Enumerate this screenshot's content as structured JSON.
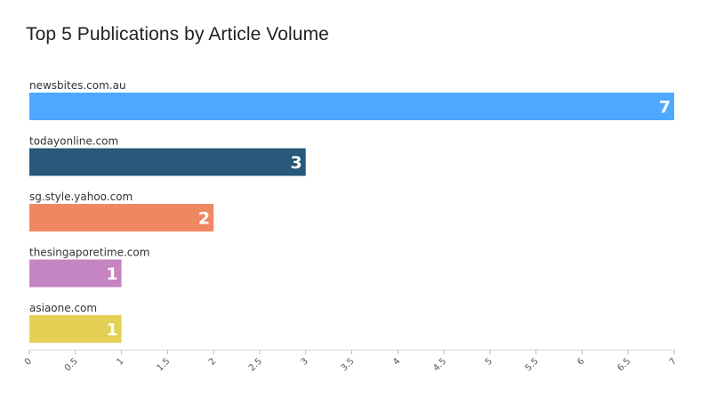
{
  "chart_data": {
    "type": "bar",
    "orientation": "horizontal",
    "title": "Top 5 Publications by Article Volume",
    "categories": [
      "newsbites.com.au",
      "todayonline.com",
      "sg.style.yahoo.com",
      "thesingaporetime.com",
      "asiaone.com"
    ],
    "values": [
      7,
      3,
      2,
      1,
      1
    ],
    "colors": [
      "#4da8ff",
      "#28587a",
      "#ef8860",
      "#c585c3",
      "#e3d054"
    ],
    "xlim": [
      0,
      7
    ],
    "xticks": [
      "0",
      "0.5",
      "1",
      "1.5",
      "2",
      "2.5",
      "3",
      "3.5",
      "4",
      "4.5",
      "5",
      "5.5",
      "6",
      "6.5",
      "7"
    ],
    "grid": false,
    "data_labels": true
  }
}
